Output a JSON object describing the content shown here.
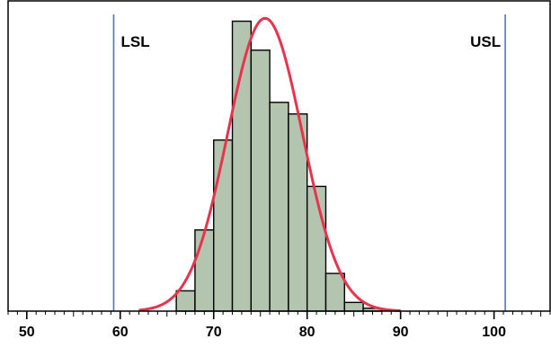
{
  "chart_data": {
    "type": "bar",
    "subtype": "histogram with normal curve and specification limits",
    "x_axis": {
      "range": [
        48,
        106
      ],
      "major_ticks": [
        50,
        60,
        70,
        80,
        90,
        100
      ],
      "tick_labels": [
        "50",
        "60",
        "70",
        "80",
        "90",
        "100"
      ],
      "minor_tick_step": 1
    },
    "y_axis": {
      "range": [
        0,
        107
      ],
      "visible": false
    },
    "bins": [
      {
        "x0": 64,
        "x1": 66,
        "count": 0
      },
      {
        "x0": 66,
        "x1": 68,
        "count": 7
      },
      {
        "x0": 68,
        "x1": 70,
        "count": 28
      },
      {
        "x0": 70,
        "x1": 72,
        "count": 59
      },
      {
        "x0": 72,
        "x1": 74,
        "count": 100
      },
      {
        "x0": 74,
        "x1": 76,
        "count": 90
      },
      {
        "x0": 76,
        "x1": 78,
        "count": 72
      },
      {
        "x0": 78,
        "x1": 80,
        "count": 68
      },
      {
        "x0": 80,
        "x1": 82,
        "count": 43
      },
      {
        "x0": 82,
        "x1": 84,
        "count": 13
      },
      {
        "x0": 84,
        "x1": 86,
        "count": 3
      },
      {
        "x0": 86,
        "x1": 88,
        "count": 1
      },
      {
        "x0": 88,
        "x1": 90,
        "count": 0
      }
    ],
    "normal_curve": {
      "mean": 75.5,
      "sd": 4.0,
      "peak": 101,
      "x_range": [
        62,
        90
      ]
    },
    "spec_limits": [
      {
        "label": "LSL",
        "value": 59.3
      },
      {
        "label": "USL",
        "value": 101.2
      }
    ],
    "grid": false,
    "colors": {
      "bar_fill": "#b3c5af",
      "bar_stroke": "#000000",
      "curve": "#e8334d",
      "spec_line": "#5670c4",
      "axis": "#000000"
    }
  }
}
